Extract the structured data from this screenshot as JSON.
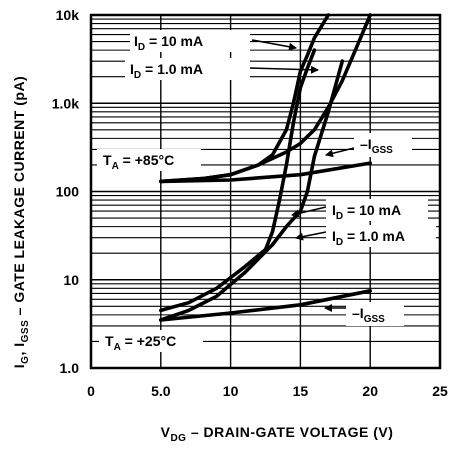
{
  "chart_data": {
    "type": "line",
    "xlabel": "V_DG – DRAIN-GATE VOLTAGE (V)",
    "ylabel": "I_G, I_GSS – GATE LEAKAGE CURRENT (pA)",
    "xlabel_parts": {
      "v": "V",
      "sub": "DG",
      "rest": " – DRAIN-GATE VOLTAGE (V)"
    },
    "ylabel_parts": {
      "a": "I",
      "a_sub": "G",
      "b": ", I",
      "b_sub": "GSS",
      "rest": " – GATE LEAKAGE CURRENT (pA)"
    },
    "x_scale": "linear",
    "y_scale": "log",
    "xlim": [
      0,
      25
    ],
    "ylim": [
      1,
      10000
    ],
    "x_ticks": [
      {
        "value": 0,
        "label": "0"
      },
      {
        "value": 5,
        "label": "5.0"
      },
      {
        "value": 10,
        "label": "10"
      },
      {
        "value": 15,
        "label": "15"
      },
      {
        "value": 20,
        "label": "20"
      },
      {
        "value": 25,
        "label": "25"
      }
    ],
    "y_ticks": [
      {
        "value": 10000,
        "label": "10k"
      },
      {
        "value": 1000,
        "label": "1.0k"
      },
      {
        "value": 100,
        "label": "100"
      },
      {
        "value": 10,
        "label": "10"
      },
      {
        "value": 1,
        "label": "1.0"
      }
    ],
    "grid": true,
    "series": [
      {
        "x": [
          5,
          8,
          10,
          12,
          13,
          14,
          14.5,
          15,
          15.5,
          16,
          17
        ],
        "y": [
          130,
          140,
          155,
          200,
          260,
          500,
          1000,
          2300,
          3500,
          5500,
          10000
        ]
      },
      {
        "x": [
          5,
          8,
          10,
          12,
          14,
          15,
          15.5,
          16,
          17,
          18,
          19,
          20
        ],
        "y": [
          130,
          140,
          155,
          200,
          280,
          350,
          420,
          500,
          900,
          1800,
          4200,
          10000
        ]
      },
      {
        "x": [
          5,
          10,
          15,
          20
        ],
        "y": [
          130,
          135,
          155,
          210
        ]
      },
      {
        "x": [
          5,
          7,
          9,
          11,
          12.5,
          13,
          13.5,
          14,
          14.5,
          15,
          15.5,
          16
        ],
        "y": [
          4.5,
          5.5,
          8,
          14,
          22,
          35,
          80,
          200,
          600,
          1500,
          2500,
          4000
        ]
      },
      {
        "x": [
          5,
          7,
          9,
          11,
          13,
          14,
          15,
          15.5,
          16,
          17,
          18
        ],
        "y": [
          3.5,
          4.5,
          6.5,
          12,
          25,
          40,
          60,
          100,
          250,
          800,
          3000
        ]
      },
      {
        "x": [
          5,
          10,
          15,
          20
        ],
        "y": [
          3.5,
          4.2,
          5.2,
          7.5
        ]
      }
    ],
    "annotations": [
      {
        "id": "ta85",
        "main": "T",
        "sub": "A",
        "rest": " = +85°C"
      },
      {
        "id": "ta25",
        "main": "T",
        "sub": "A",
        "rest": " = +25°C"
      },
      {
        "id": "id10-85",
        "main": "I",
        "sub": "D",
        "rest": " = 10 mA"
      },
      {
        "id": "id1-85",
        "main": "I",
        "sub": "D",
        "rest": " = 1.0 mA"
      },
      {
        "id": "igss-85",
        "main": "–I",
        "sub": "GSS",
        "rest": ""
      },
      {
        "id": "id10-25",
        "main": "I",
        "sub": "D",
        "rest": " = 10 mA"
      },
      {
        "id": "id1-25",
        "main": "I",
        "sub": "D",
        "rest": " = 1.0 mA"
      },
      {
        "id": "igss-25",
        "main": "–I",
        "sub": "GSS",
        "rest": ""
      }
    ]
  }
}
